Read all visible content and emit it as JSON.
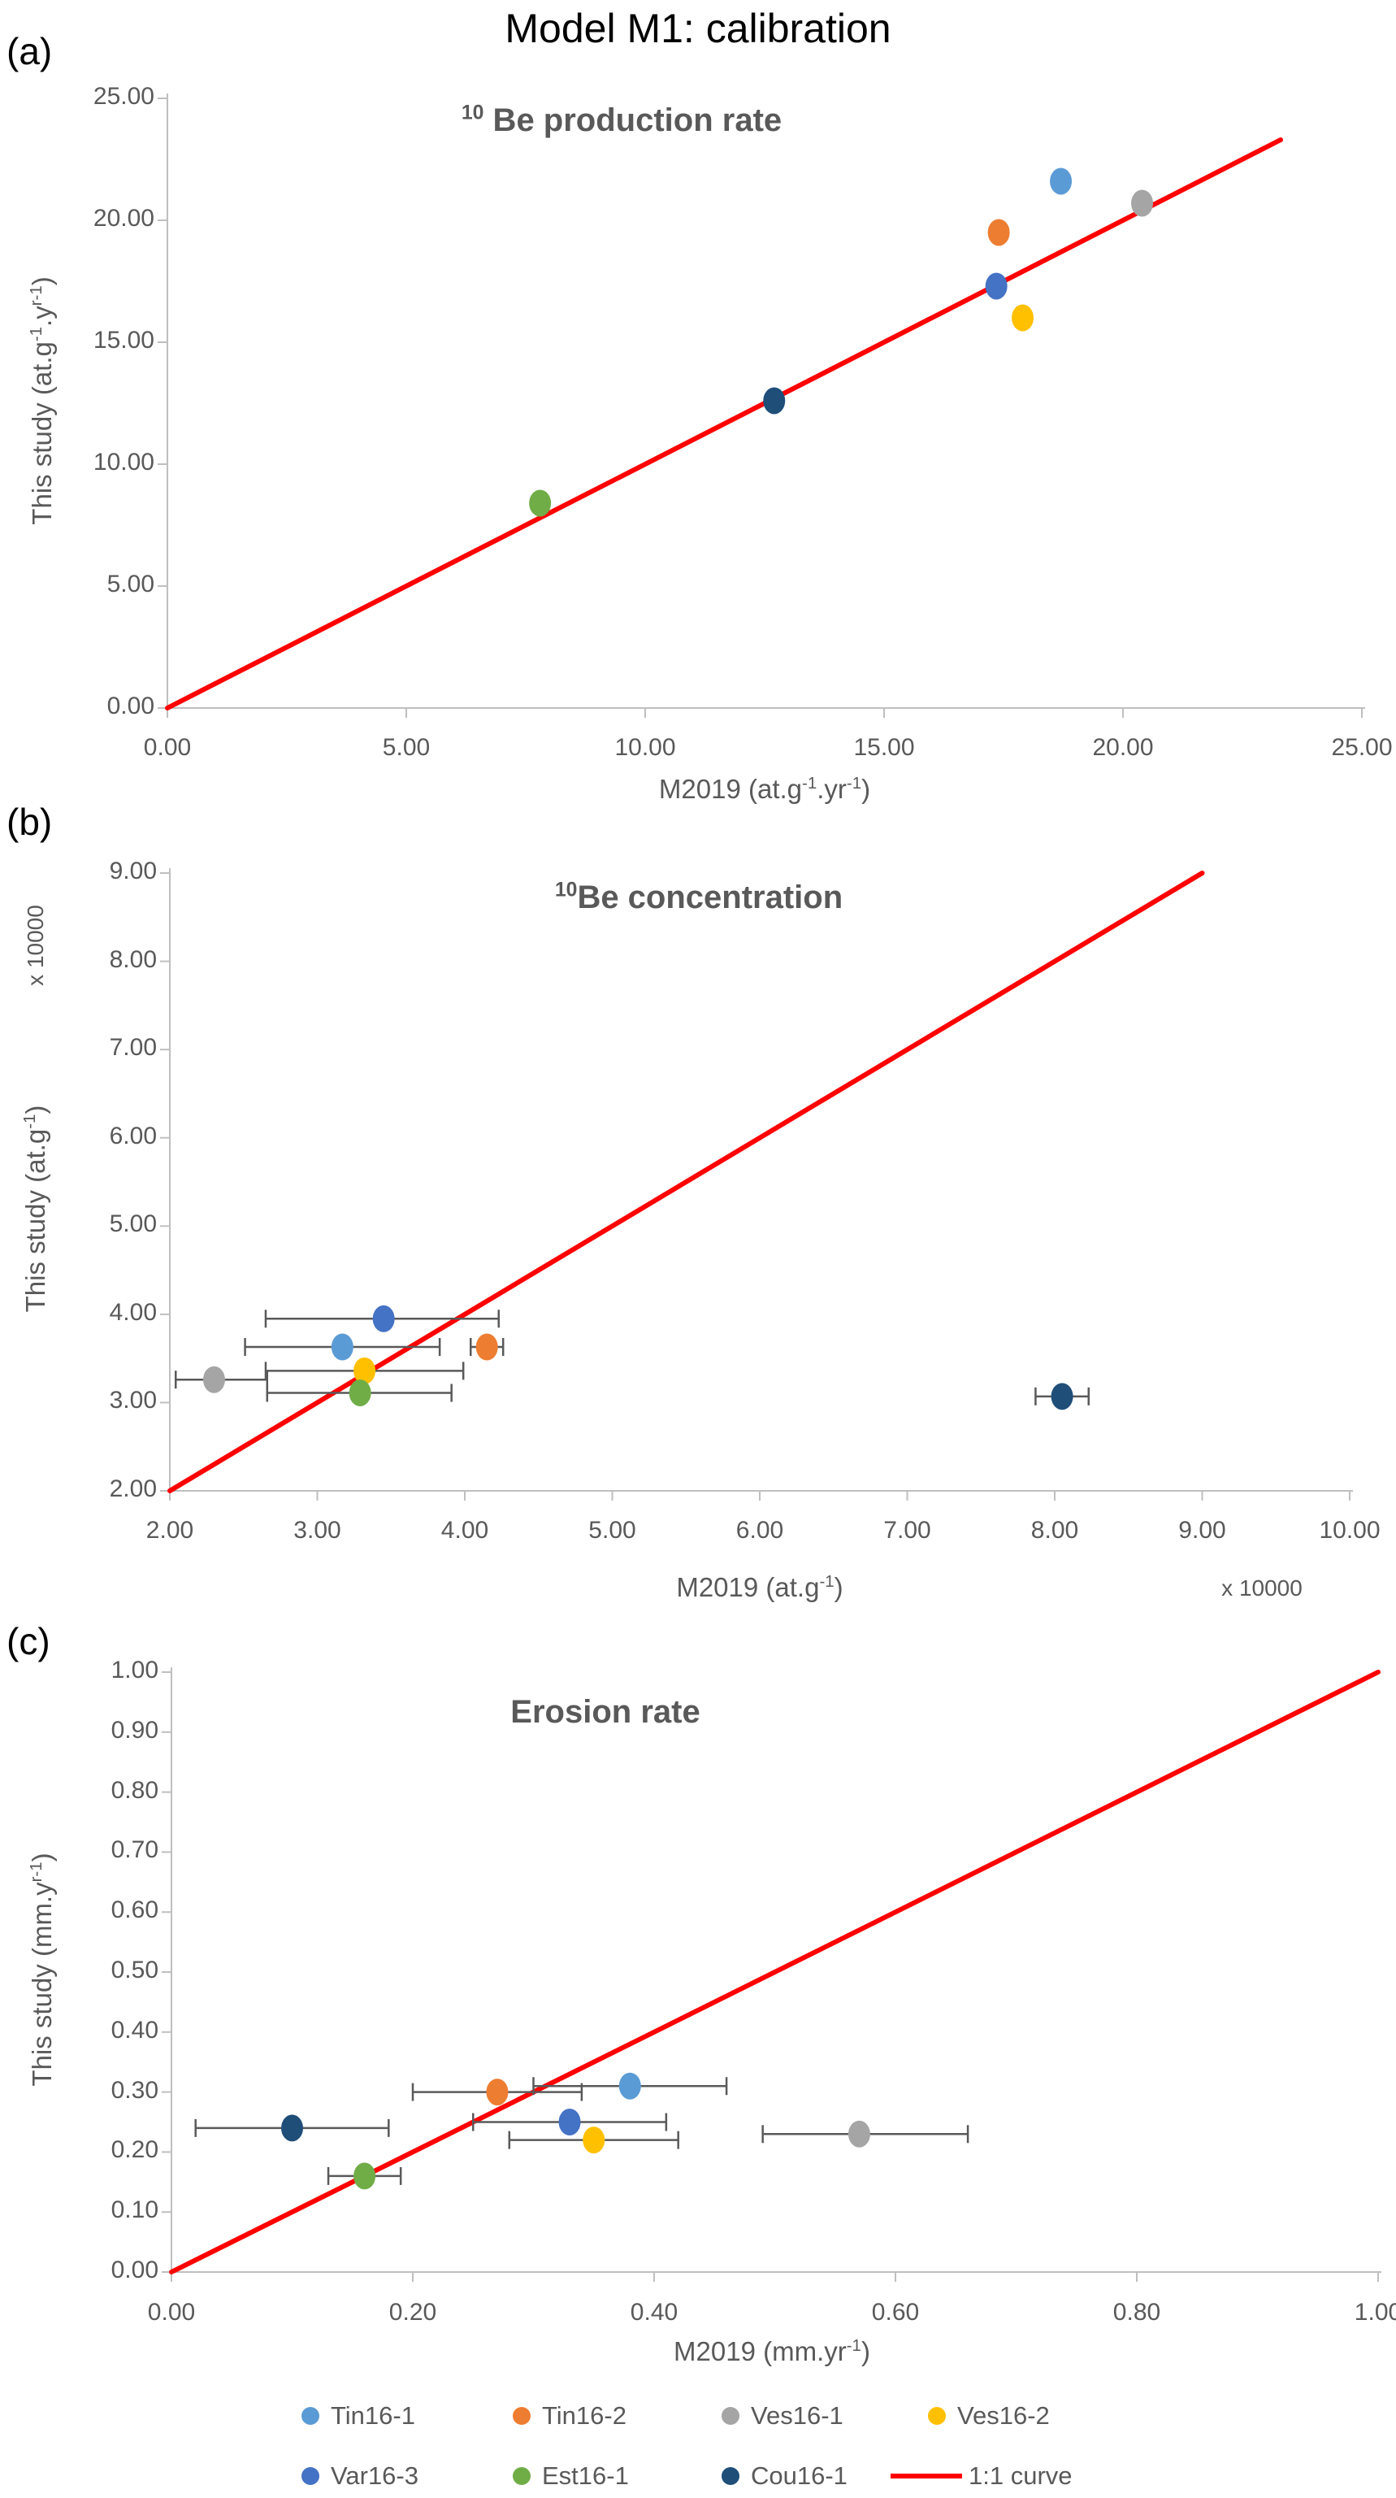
{
  "title": "Model M1: calibration",
  "colors": {
    "text": "#595959",
    "title_text": "#000000",
    "axis": "#BFBFBF",
    "error_bar": "#595959",
    "identity_line": "#FF0000"
  },
  "series_colors": {
    "Tin16-1": "#5B9BD5",
    "Tin16-2": "#ED7D31",
    "Ves16-1": "#A5A5A5",
    "Ves16-2": "#FFC000",
    "Var16-3": "#4472C4",
    "Est16-1": "#70AD47",
    "Cou16-1": "#1F4E79"
  },
  "legend": {
    "items": [
      {
        "label": "Tin16-1",
        "series": "Tin16-1",
        "type": "marker"
      },
      {
        "label": "Tin16-2",
        "series": "Tin16-2",
        "type": "marker"
      },
      {
        "label": "Ves16-1",
        "series": "Ves16-1",
        "type": "marker"
      },
      {
        "label": "Ves16-2",
        "series": "Ves16-2",
        "type": "marker"
      },
      {
        "label": "Var16-3",
        "series": "Var16-3",
        "type": "marker"
      },
      {
        "label": "Est16-1",
        "series": "Est16-1",
        "type": "marker"
      },
      {
        "label": "Cou16-1",
        "series": "Cou16-1",
        "type": "marker"
      },
      {
        "label": "1:1 curve",
        "type": "line",
        "color": "#FF0000"
      }
    ]
  },
  "chart_data": [
    {
      "id": "a",
      "panel_label": "(a)",
      "type": "scatter",
      "title": "^{10} Be production rate",
      "xlabel": "M2019 (at.g^{-1}.yr^{-1})",
      "ylabel": "This study (at.g^{-1}.y^{r-1})",
      "xlim": [
        0,
        25
      ],
      "ylim": [
        0,
        25
      ],
      "xticks": [
        "0.00",
        "5.00",
        "10.00",
        "15.00",
        "20.00",
        "25.00"
      ],
      "yticks": [
        "0.00",
        "5.00",
        "10.00",
        "15.00",
        "20.00",
        "25.00"
      ],
      "grid": false,
      "legend_position": "none",
      "identity_line": {
        "from": 0,
        "to": 23.3,
        "color": "#FF0000",
        "label": "1:1 curve"
      },
      "points": [
        {
          "series": "Tin16-1",
          "x": 18.7,
          "y": 21.6
        },
        {
          "series": "Tin16-2",
          "x": 17.4,
          "y": 19.5
        },
        {
          "series": "Ves16-1",
          "x": 20.4,
          "y": 20.7
        },
        {
          "series": "Ves16-2",
          "x": 17.9,
          "y": 16.0
        },
        {
          "series": "Var16-3",
          "x": 17.35,
          "y": 17.3
        },
        {
          "series": "Est16-1",
          "x": 7.8,
          "y": 8.4
        },
        {
          "series": "Cou16-1",
          "x": 12.7,
          "y": 12.6
        }
      ]
    },
    {
      "id": "b",
      "panel_label": "(b)",
      "type": "scatter",
      "title": "^{10}Be concentration",
      "xlabel": "M2019 (at.g^{-1})",
      "ylabel": "This study (at.g^{-1})",
      "x_units_label": "x 10000",
      "y_units_label": "x 10000",
      "xlim": [
        2,
        10
      ],
      "ylim": [
        2,
        9
      ],
      "xticks": [
        "2.00",
        "3.00",
        "4.00",
        "5.00",
        "6.00",
        "7.00",
        "8.00",
        "9.00",
        "10.00"
      ],
      "yticks": [
        "2.00",
        "3.00",
        "4.00",
        "5.00",
        "6.00",
        "7.00",
        "8.00",
        "9.00"
      ],
      "grid": false,
      "legend_position": "none",
      "identity_line": {
        "from": 2,
        "to": 9,
        "color": "#FF0000",
        "label": "1:1 curve"
      },
      "points": [
        {
          "series": "Var16-3",
          "x": 3.45,
          "y": 3.95,
          "xlo": 2.65,
          "xhi": 4.23
        },
        {
          "series": "Tin16-1",
          "x": 3.17,
          "y": 3.63,
          "xlo": 2.51,
          "xhi": 3.83
        },
        {
          "series": "Tin16-2",
          "x": 4.15,
          "y": 3.63,
          "xlo": 4.04,
          "xhi": 4.26
        },
        {
          "series": "Ves16-2",
          "x": 3.32,
          "y": 3.36,
          "xlo": 2.65,
          "xhi": 3.99
        },
        {
          "series": "Ves16-1",
          "x": 2.3,
          "y": 3.26,
          "xlo": 2.04,
          "xhi": 2.66
        },
        {
          "series": "Est16-1",
          "x": 3.29,
          "y": 3.11,
          "xlo": 2.66,
          "xhi": 3.91
        },
        {
          "series": "Cou16-1",
          "x": 8.05,
          "y": 3.07,
          "xlo": 7.87,
          "xhi": 8.23
        }
      ]
    },
    {
      "id": "c",
      "panel_label": "(c)",
      "type": "scatter",
      "title": "Erosion rate",
      "xlabel": "M2019 (mm.yr^{-1})",
      "ylabel": "This study (mm.y^{r-1})",
      "xlim": [
        0,
        1
      ],
      "ylim": [
        0,
        1
      ],
      "xticks": [
        "0.00",
        "0.20",
        "0.40",
        "0.60",
        "0.80",
        "1.00"
      ],
      "yticks": [
        "0.00",
        "0.10",
        "0.20",
        "0.30",
        "0.40",
        "0.50",
        "0.60",
        "0.70",
        "0.80",
        "0.90",
        "1.00"
      ],
      "grid": false,
      "legend_position": "bottom",
      "identity_line": {
        "from": 0,
        "to": 1,
        "color": "#FF0000",
        "label": "1:1 curve"
      },
      "points": [
        {
          "series": "Tin16-1",
          "x": 0.38,
          "y": 0.31,
          "xlo": 0.3,
          "xhi": 0.46
        },
        {
          "series": "Tin16-2",
          "x": 0.27,
          "y": 0.3,
          "xlo": 0.2,
          "xhi": 0.34
        },
        {
          "series": "Var16-3",
          "x": 0.33,
          "y": 0.25,
          "xlo": 0.25,
          "xhi": 0.41
        },
        {
          "series": "Cou16-1",
          "x": 0.1,
          "y": 0.24,
          "xlo": 0.02,
          "xhi": 0.18
        },
        {
          "series": "Ves16-1",
          "x": 0.57,
          "y": 0.23,
          "xlo": 0.49,
          "xhi": 0.66
        },
        {
          "series": "Ves16-2",
          "x": 0.35,
          "y": 0.22,
          "xlo": 0.28,
          "xhi": 0.42
        },
        {
          "series": "Est16-1",
          "x": 0.16,
          "y": 0.16,
          "xlo": 0.13,
          "xhi": 0.19
        }
      ]
    }
  ]
}
